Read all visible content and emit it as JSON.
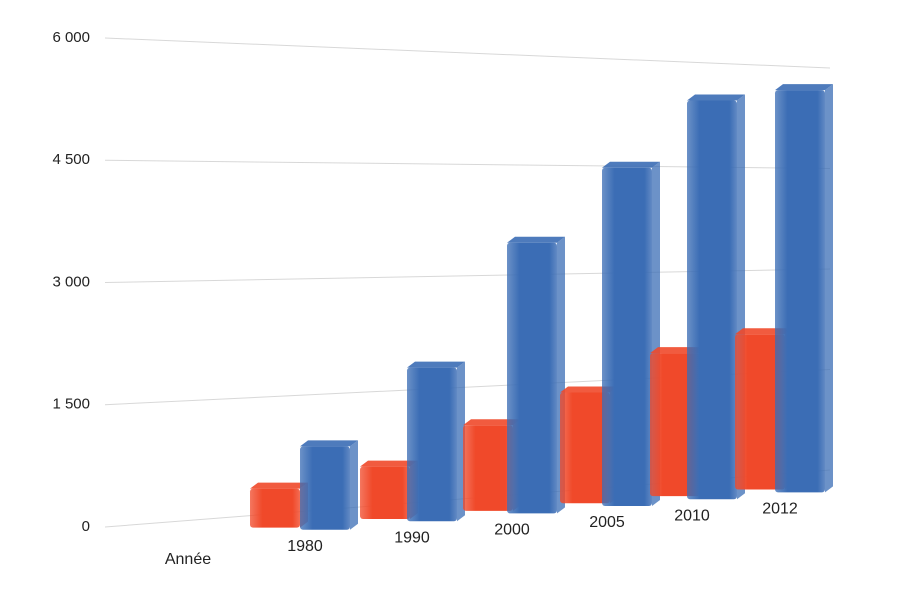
{
  "chart_data": {
    "type": "bar3d",
    "x_label": "Année",
    "categories": [
      "1980",
      "1990",
      "2000",
      "2005",
      "2010",
      "2012"
    ],
    "series": [
      {
        "color": "#f0492a",
        "values": [
          500,
          690,
          1160,
          1540,
          2040,
          2270
        ]
      },
      {
        "color": "#3b6db5",
        "values": [
          1080,
          2050,
          3710,
          4760,
          5750,
          5950
        ]
      }
    ],
    "ylim": [
      0,
      6000
    ],
    "yticks": [
      0,
      {
        "value": 1500,
        "label": "1 500"
      },
      {
        "value": 3000,
        "label": "3 000"
      },
      {
        "value": 4500,
        "label": "4 500"
      },
      {
        "value": 6000,
        "label": "6 000"
      }
    ],
    "grid": true
  }
}
